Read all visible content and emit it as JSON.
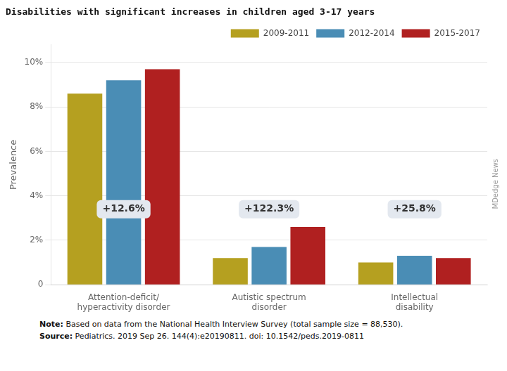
{
  "chart_data": {
    "type": "bar",
    "title": "Disabilities with significant increases in children aged 3-17 years",
    "categories": [
      "Attention-deficit/\nhyperactivity disorder",
      "Autistic spectrum\ndisorder",
      "Intellectual\ndisability"
    ],
    "series": [
      {
        "name": "2009-2011",
        "color": "#b5a020",
        "values": [
          8.6,
          1.2,
          1.0
        ]
      },
      {
        "name": "2012-2014",
        "color": "#4a8db5",
        "values": [
          9.2,
          1.7,
          1.3
        ]
      },
      {
        "name": "2015-2017",
        "color": "#b02020",
        "values": [
          9.7,
          2.6,
          1.2
        ]
      }
    ],
    "ylabel": "Prevalence",
    "ylim": [
      0,
      10.8
    ],
    "yticks": [
      0,
      {
        "value": 2,
        "label": "2%"
      },
      {
        "value": 4,
        "label": "4%"
      },
      {
        "value": 6,
        "label": "6%"
      },
      {
        "value": 8,
        "label": "8%"
      },
      {
        "value": 10,
        "label": "10%"
      }
    ],
    "grid": true,
    "legend": "upper right",
    "annotations": [
      {
        "text": "+12.6%",
        "x": "Attention-deficit/\nhyperactivity disorder",
        "y": 3.4
      },
      {
        "text": "+122.3%",
        "x": "Autistic spectrum\ndisorder",
        "y": 3.4
      },
      {
        "text": "+25.8%",
        "x": "Intellectual\ndisability",
        "y": 3.4
      }
    ],
    "watermark": "MDedge News",
    "footnotes": [
      {
        "bold": "Note:",
        "text": "Based on data from the National Health Interview Survey (total sample size = 88,530)."
      },
      {
        "bold": "Source:",
        "text": "Pediatrics. 2019 Sep 26. 144(4):e20190811. doi: 10.1542/peds.2019-0811"
      }
    ]
  }
}
